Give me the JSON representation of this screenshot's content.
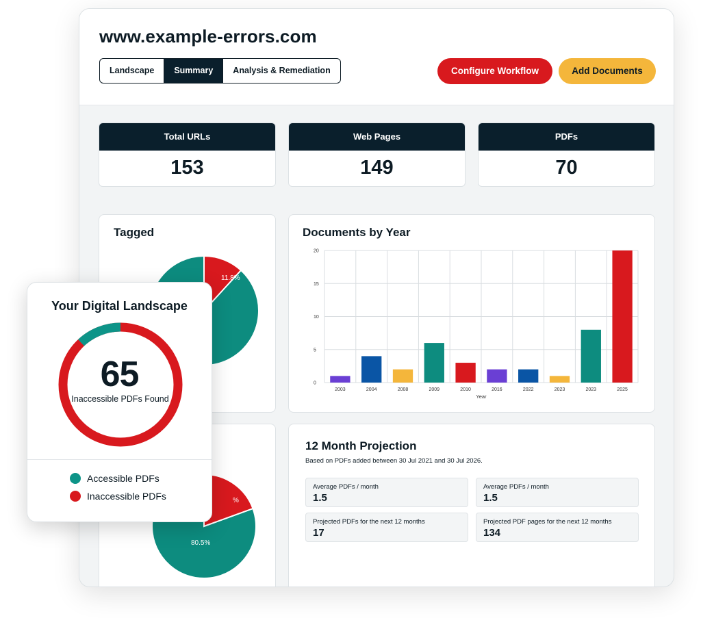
{
  "colors": {
    "navy": "#0a1f2c",
    "red": "#d8191e",
    "teal": "#0d8c7f",
    "yellow": "#f4b63b",
    "blue": "#0a55a5",
    "purple": "#6a3fd4"
  },
  "header": {
    "site": "www.example-errors.com",
    "tabs": [
      {
        "label": "Landscape",
        "active": false
      },
      {
        "label": "Summary",
        "active": true
      },
      {
        "label": "Analysis & Remediation",
        "active": false
      }
    ],
    "configure_label": "Configure Workflow",
    "add_label": "Add Documents"
  },
  "stats": [
    {
      "label": "Total URLs",
      "value": "153"
    },
    {
      "label": "Web Pages",
      "value": "149"
    },
    {
      "label": "PDFs",
      "value": "70"
    }
  ],
  "tagged": {
    "title": "Tagged",
    "slices": [
      {
        "label": "11.8%",
        "value": 11.8,
        "color": "#d8191e"
      },
      {
        "value": 88.2,
        "color": "#0d8c7f"
      }
    ]
  },
  "second_pie": {
    "slices": [
      {
        "label": "80.5%",
        "value": 80.5,
        "color": "#0d8c7f"
      },
      {
        "label": "%",
        "value": 19.5,
        "color": "#d8191e"
      }
    ]
  },
  "chart_data": {
    "type": "bar",
    "title": "Documents by Year",
    "xlabel": "Year",
    "ylabel": "",
    "categories": [
      "2003",
      "2004",
      "2008",
      "2009",
      "2010",
      "2016",
      "2022",
      "2023",
      "2023",
      "2025"
    ],
    "values": [
      1,
      4,
      2,
      6,
      3,
      2,
      2,
      1,
      8,
      20
    ],
    "colors": [
      "#6a3fd4",
      "#0a55a5",
      "#f4b63b",
      "#0d8c7f",
      "#d8191e",
      "#6a3fd4",
      "#0a55a5",
      "#f4b63b",
      "#0d8c7f",
      "#d8191e"
    ],
    "ylim": [
      0,
      20
    ],
    "yticks": [
      0,
      5,
      10,
      15,
      20
    ],
    "grid": true
  },
  "projection": {
    "title": "12 Month Projection",
    "subtitle": "Based on PDFs added between 30 Jul 2021 and 30 Jul 2026.",
    "metrics": [
      {
        "label": "Average PDFs / month",
        "value": "1.5"
      },
      {
        "label": "Average PDFs / month",
        "value": "1.5"
      },
      {
        "label": "Projected PDFs for the next 12 months",
        "value": "17"
      },
      {
        "label": "Projected PDF pages for the next 12 months",
        "value": "134"
      }
    ]
  },
  "landscape": {
    "title": "Your Digital Landscape",
    "count": "65",
    "caption": "Inaccessible PDFs Found",
    "accessible_fraction": 0.12,
    "legend": [
      {
        "label": "Accessible PDFs",
        "color": "#0d9488"
      },
      {
        "label": "Inaccessible PDFs",
        "color": "#d8191e"
      }
    ]
  }
}
